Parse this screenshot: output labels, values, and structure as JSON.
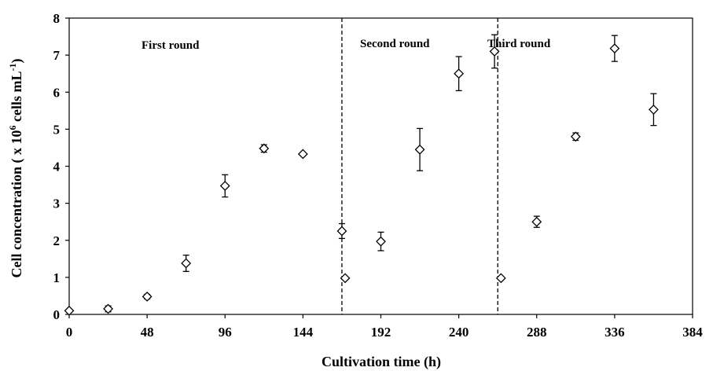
{
  "chart_data": {
    "type": "scatter",
    "xlabel": "Cultivation time (h)",
    "ylabel_main": "Cell concentration ( x 10",
    "ylabel_sup": "6",
    "ylabel_mid": " cells  mL",
    "ylabel_sup2": "-1",
    "ylabel_end": ")",
    "xlim": [
      0,
      384
    ],
    "ylim": [
      0,
      8
    ],
    "x_ticks": [
      "0",
      "48",
      "96",
      "144",
      "192",
      "240",
      "288",
      "336",
      "384"
    ],
    "y_ticks": [
      "0",
      "1",
      "2",
      "3",
      "4",
      "5",
      "6",
      "7",
      "8"
    ],
    "grid": false,
    "marker": "diamond-open",
    "annotations": [
      "First round",
      "Second round",
      "Third round"
    ],
    "vertical_lines": [
      168,
      264
    ],
    "points": [
      {
        "x": 0,
        "y": 0.1,
        "err": 0
      },
      {
        "x": 24,
        "y": 0.15,
        "err": 0.08
      },
      {
        "x": 48,
        "y": 0.48,
        "err": 0.06
      },
      {
        "x": 72,
        "y": 1.38,
        "err": 0.22
      },
      {
        "x": 96,
        "y": 3.47,
        "err": 0.3
      },
      {
        "x": 120,
        "y": 4.48,
        "err": 0.1
      },
      {
        "x": 144,
        "y": 4.33,
        "err": 0
      },
      {
        "x": 168,
        "y": 2.25,
        "err": 0.2
      },
      {
        "x": 170,
        "y": 0.98,
        "err": 0
      },
      {
        "x": 192,
        "y": 1.97,
        "err": 0.25
      },
      {
        "x": 216,
        "y": 4.45,
        "err": 0.57
      },
      {
        "x": 240,
        "y": 6.5,
        "err": 0.46
      },
      {
        "x": 262,
        "y": 7.1,
        "err": 0.45
      },
      {
        "x": 266,
        "y": 0.98,
        "err": 0
      },
      {
        "x": 288,
        "y": 2.5,
        "err": 0.15
      },
      {
        "x": 312,
        "y": 4.8,
        "err": 0.1
      },
      {
        "x": 336,
        "y": 7.18,
        "err": 0.35
      },
      {
        "x": 360,
        "y": 5.53,
        "err": 0.43
      }
    ]
  }
}
